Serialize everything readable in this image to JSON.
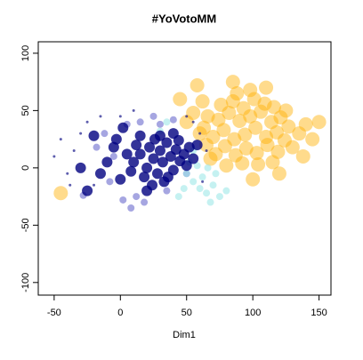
{
  "chart_data": {
    "type": "scatter",
    "title": "#YoVotoMM",
    "xlabel": "Dim1",
    "xlim": [
      -62,
      159
    ],
    "ylim": [
      -111,
      110
    ],
    "xticks": [
      -50,
      0,
      50,
      100,
      150
    ],
    "yticks": [
      -100,
      -50,
      0,
      50,
      100
    ],
    "series": [
      {
        "color": "#6a6acd",
        "alpha": 0.6,
        "marker_size": 4,
        "x": [
          12,
          -5,
          5,
          15,
          25,
          -18,
          -8,
          2,
          8,
          30,
          40,
          -28,
          18,
          35,
          -12,
          50
        ],
        "y": [
          -25,
          10,
          38,
          40,
          45,
          18,
          -12,
          -28,
          -35,
          38,
          42,
          -24,
          -30,
          -20,
          30,
          -5
        ]
      },
      {
        "color": "#ffb000",
        "alpha": 0.45,
        "marker_size": 8,
        "x": [
          72,
          79,
          87,
          95,
          103,
          111,
          119,
          70,
          78,
          86,
          94,
          102,
          110,
          118,
          74,
          82,
          90,
          98,
          106,
          114,
          121,
          76,
          85,
          93,
          101,
          109,
          116,
          65,
          63,
          66,
          124,
          127,
          130,
          92,
          104,
          80,
          68,
          115,
          125,
          88,
          98,
          135,
          140,
          145,
          60,
          55,
          50,
          62,
          110,
          85,
          -45,
          100,
          120,
          138,
          150,
          45,
          58
        ],
        "y": [
          12,
          19,
          11,
          17,
          13,
          20,
          14,
          27,
          33,
          25,
          29,
          35,
          27,
          31,
          42,
          48,
          41,
          45,
          49,
          40,
          44,
          55,
          58,
          52,
          60,
          56,
          53,
          20,
          35,
          45,
          24,
          36,
          18,
          4,
          3,
          2,
          8,
          5,
          50,
          65,
          68,
          30,
          38,
          25,
          30,
          48,
          40,
          58,
          70,
          75,
          -22,
          -10,
          -5,
          10,
          40,
          60,
          72
        ]
      },
      {
        "color": "#9ee8e8",
        "alpha": 0.6,
        "marker_size": 4,
        "x": [
          50,
          55,
          60,
          65,
          70,
          62,
          75,
          58,
          68,
          52,
          48,
          80,
          72,
          66,
          44,
          55,
          30,
          35
        ],
        "y": [
          -5,
          -12,
          -18,
          -22,
          -15,
          -8,
          -25,
          2,
          -30,
          5,
          -18,
          -20,
          -5,
          0,
          -25,
          15,
          32,
          40
        ]
      },
      {
        "color": "#1a1a8c",
        "alpha": 0.7,
        "marker_size": 1.5,
        "x": [
          -35,
          -40,
          -30,
          -45,
          -25,
          -20,
          60,
          55,
          50,
          -15,
          0,
          10,
          -50,
          -38,
          65,
          62
        ],
        "y": [
          15,
          -5,
          30,
          25,
          40,
          -15,
          30,
          40,
          45,
          45,
          45,
          50,
          10,
          -15,
          15,
          -12
        ]
      },
      {
        "color": "#000080",
        "alpha": 0.8,
        "marker_size": 6,
        "x": [
          10,
          15,
          20,
          22,
          25,
          28,
          30,
          32,
          35,
          38,
          40,
          42,
          45,
          48,
          18,
          12,
          26,
          33,
          44,
          50,
          8,
          5,
          36,
          24,
          30,
          52,
          15,
          40,
          -5,
          -10,
          0,
          -3,
          55,
          20,
          -15,
          -20,
          58,
          2,
          -25,
          -30
        ],
        "y": [
          5,
          12,
          0,
          18,
          8,
          -5,
          15,
          5,
          22,
          10,
          -2,
          16,
          6,
          12,
          -8,
          20,
          25,
          -12,
          24,
          2,
          -3,
          12,
          -8,
          -15,
          28,
          18,
          28,
          30,
          18,
          5,
          -10,
          25,
          8,
          -20,
          -5,
          28,
          20,
          35,
          -20,
          0
        ]
      }
    ]
  }
}
